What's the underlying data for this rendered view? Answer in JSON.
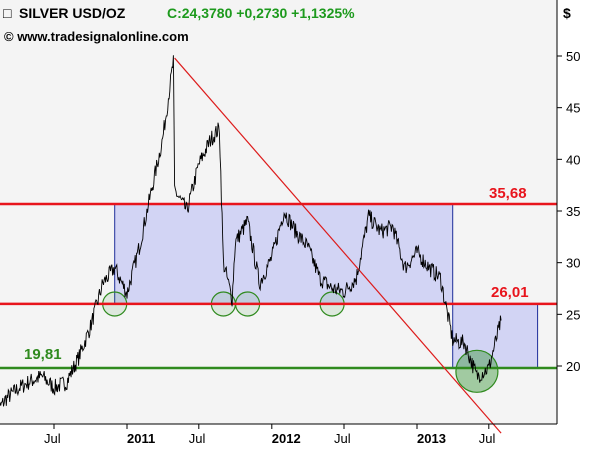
{
  "header": {
    "instrument": "SILVER USD/OZ",
    "quote": "C:24,3780 +0,2730 +1,1325%",
    "source": "© www.tradesignalonline.com",
    "currency_symbol": "$"
  },
  "colors": {
    "background": "#ffffff",
    "plot_background": "#f4f4f4",
    "price_line": "#000000",
    "resistance_line": "#e8141c",
    "support_line": "#2f8a1e",
    "trend_line": "#dd1c1c",
    "box_fill": "#d2d4f4",
    "box_stroke": "#1e2e9a",
    "circle_stroke": "#2f8a1e",
    "quote_text": "#1d9a1d",
    "label_red": "#e8141c",
    "label_green": "#2f8a1e"
  },
  "chart_data": {
    "type": "line",
    "title": "SILVER USD/OZ",
    "series": [
      {
        "name": "SILVER USD/OZ",
        "x": [
          "2010-02",
          "2010-03",
          "2010-04",
          "2010-05",
          "2010-06",
          "2010-07",
          "2010-08",
          "2010-09",
          "2010-10",
          "2010-11",
          "2010-12",
          "2011-01",
          "2011-02",
          "2011-03",
          "2011-04",
          "2011-04-28",
          "2011-05",
          "2011-06",
          "2011-07",
          "2011-08",
          "2011-08-22",
          "2011-09",
          "2011-09-23",
          "2011-10",
          "2011-11",
          "2011-12",
          "2012-01",
          "2012-02",
          "2012-03",
          "2012-04",
          "2012-05",
          "2012-06",
          "2012-07",
          "2012-08",
          "2012-09",
          "2012-10",
          "2012-11",
          "2012-12",
          "2013-01",
          "2013-02",
          "2013-03",
          "2013-04",
          "2013-05",
          "2013-06",
          "2013-07",
          "2013-08"
        ],
        "values": [
          15.2,
          16.8,
          17.8,
          18.5,
          19.0,
          17.9,
          18.4,
          20.8,
          23.8,
          28.0,
          29.5,
          27.0,
          31.5,
          36.5,
          42.0,
          49.5,
          37.0,
          35.0,
          39.5,
          42.0,
          43.0,
          30.0,
          26.5,
          32.0,
          34.0,
          28.0,
          30.5,
          35.0,
          33.0,
          31.5,
          28.5,
          27.5,
          27.2,
          28.5,
          34.5,
          33.0,
          33.5,
          29.5,
          31.0,
          29.5,
          28.5,
          22.5,
          22.2,
          19.0,
          19.8,
          24.4
        ]
      }
    ],
    "levels": [
      {
        "label": "35,68",
        "value": 35.68,
        "color": "red"
      },
      {
        "label": "26,01",
        "value": 26.01,
        "color": "red"
      },
      {
        "label": "19,81",
        "value": 19.81,
        "color": "green"
      }
    ],
    "trendline": {
      "from": {
        "x": "2011-05",
        "y": 49.8
      },
      "to": {
        "x": "2013-08",
        "y": 13.5
      }
    },
    "boxes": [
      {
        "x_from": "2010-12",
        "x_to": "2013-04",
        "y_from": 26.01,
        "y_to": 35.68
      },
      {
        "x_from": "2013-04",
        "x_to": "2013-11",
        "y_from": 19.81,
        "y_to": 26.01
      }
    ],
    "support_touches": [
      {
        "x": "2010-12",
        "y": 26.0
      },
      {
        "x": "2011-09",
        "y": 26.0
      },
      {
        "x": "2011-11",
        "y": 26.0
      },
      {
        "x": "2012-06",
        "y": 26.0
      },
      {
        "x": "2013-06",
        "y": 19.0
      }
    ],
    "y_ticks": [
      20,
      25,
      30,
      35,
      40,
      45,
      50
    ],
    "x_ticks": [
      "Jul",
      "2011",
      "Jul",
      "2012",
      "Jul",
      "2013",
      "Jul"
    ],
    "ylim": [
      12,
      53
    ],
    "ylabel": "$",
    "xlabel": "",
    "grid": false,
    "legend": "none"
  }
}
